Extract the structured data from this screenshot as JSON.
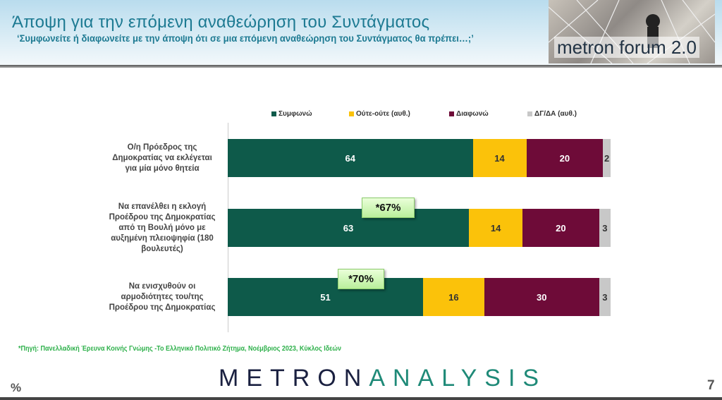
{
  "header": {
    "title": "Άποψη για την επόμενη αναθεώρηση του Συντάγματος",
    "subtitle": "‘Συμφωνείτε ή διαφωνείτε με την άποψη ότι σε μια επόμενη αναθεώρηση του Συντάγματος θα πρέπει…;’",
    "logo_text": "metron forum 2.0"
  },
  "chart_data": {
    "type": "bar",
    "orientation": "horizontal",
    "stacked": true,
    "unit": "%",
    "categories": [
      "Ο/η Πρόεδρος της Δημοκρατίας να εκλέγεται για μία μόνο θητεία",
      "Να επανέλθει η εκλογή Προέδρου της Δημοκρατίας από τη Βουλή μόνο με αυξημένη πλειοψηφία (180 βουλευτές)",
      "Να ενισχυθούν οι αρμοδιότητες του/της Προέδρου της Δημοκρατίας"
    ],
    "series": [
      {
        "name": "Συμφωνώ",
        "color": "#0e5a4a",
        "label_color": "#ffffff",
        "values": [
          64,
          63,
          51
        ]
      },
      {
        "name": "Ούτε-ούτε (αυθ.)",
        "color": "#fbc20a",
        "label_color": "#333333",
        "values": [
          14,
          14,
          16
        ]
      },
      {
        "name": "Διαφωνώ",
        "color": "#6e0b38",
        "label_color": "#ffffff",
        "values": [
          20,
          20,
          30
        ]
      },
      {
        "name": "ΔΓ/ΔΑ (αυθ.)",
        "color": "#c8c8c8",
        "label_color": "#333333",
        "values": [
          2,
          3,
          3
        ]
      }
    ],
    "annotations": [
      {
        "category_index": 1,
        "text": "*67%"
      },
      {
        "category_index": 2,
        "text": "*70%"
      }
    ],
    "legend_position": "top",
    "xlim": [
      0,
      100
    ]
  },
  "footer": {
    "source": "*Πηγή: Πανελλαδική Έρευνα Κοινής Γνώμης -Το Ελληνικό Πολιτικό Ζήτημα, Νοέμβριος 2023, Κύκλος Ιδεών",
    "brand_a": "METRON",
    "brand_b": "ANALYSIS",
    "percent_sign": "%",
    "page": "7"
  }
}
